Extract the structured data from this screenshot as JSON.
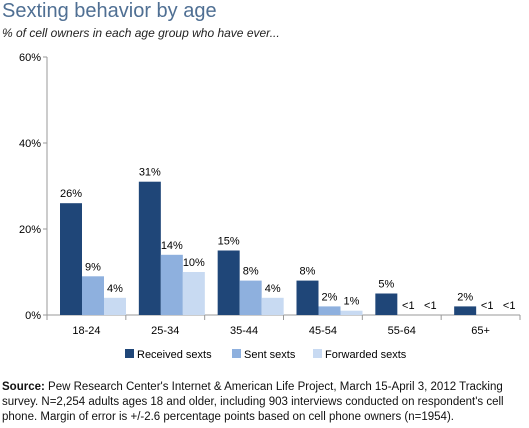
{
  "header": {
    "title": "Sexting behavior by age",
    "subtitle": "% of cell owners in each age group who have ever..."
  },
  "colors": {
    "received": "#1f4678",
    "sent": "#8eb0de",
    "forwarded": "#c8daf2",
    "title": "#4f6f93",
    "axis": "#999999"
  },
  "chart_data": {
    "type": "bar",
    "categories": [
      "18-24",
      "25-34",
      "35-44",
      "45-54",
      "55-64",
      "65+"
    ],
    "series": [
      {
        "name": "Received sexts",
        "values": [
          26,
          31,
          15,
          8,
          5,
          2
        ],
        "labels": [
          "26%",
          "31%",
          "15%",
          "8%",
          "5%",
          "2%"
        ]
      },
      {
        "name": "Sent sexts",
        "values": [
          9,
          14,
          8,
          2,
          0,
          0
        ],
        "labels": [
          "9%",
          "14%",
          "8%",
          "2%",
          "<1",
          "<1"
        ]
      },
      {
        "name": "Forwarded sexts",
        "values": [
          4,
          10,
          4,
          1,
          0,
          0
        ],
        "labels": [
          "4%",
          "10%",
          "4%",
          "1%",
          "<1",
          "<1"
        ]
      }
    ],
    "yticks": [
      "0%",
      "20%",
      "40%",
      "60%"
    ],
    "ylim": [
      0,
      60
    ],
    "legend_position": "bottom",
    "grid": false
  },
  "footer": {
    "source_label": "Source:",
    "source_text": " Pew Research Center's Internet & American Life Project, March 15-April 3, 2012 Tracking survey. N=2,254 adults ages 18 and older, including 903 interviews conducted on respondent's cell phone. Margin of error is +/-2.6 percentage points based on cell phone owners (n=1954)."
  }
}
